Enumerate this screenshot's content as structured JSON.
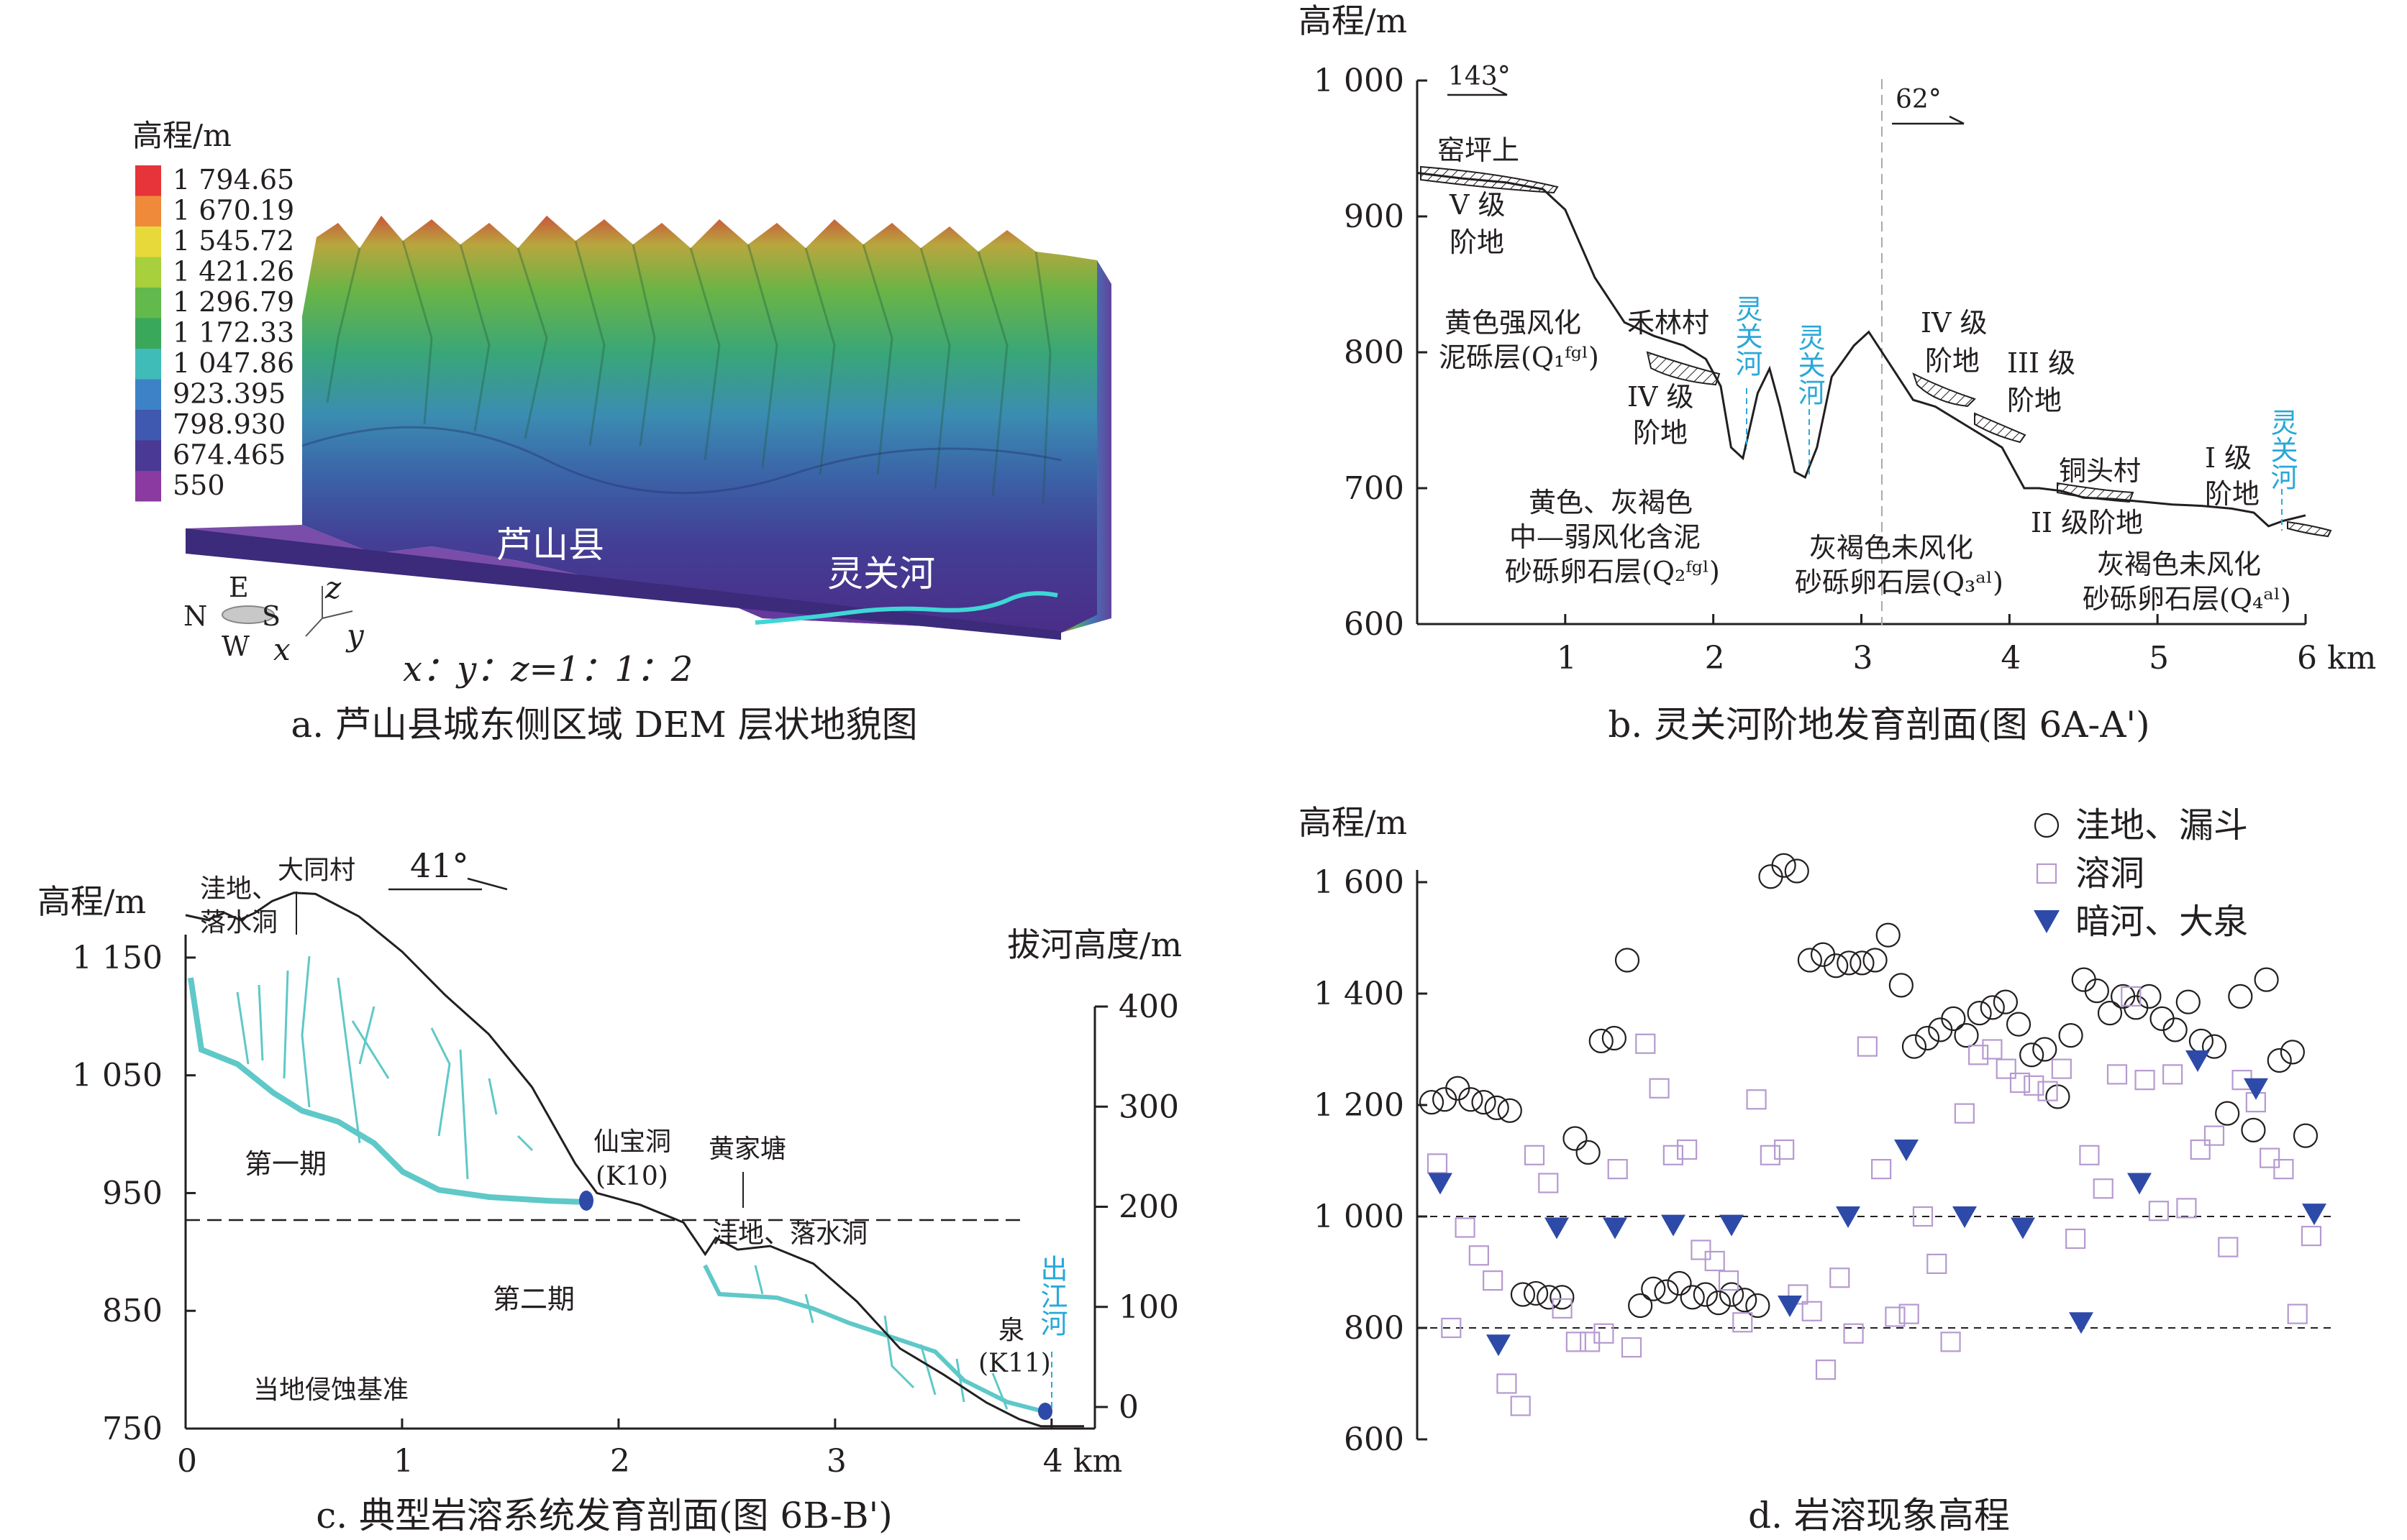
{
  "panel_a": {
    "caption": "a. 芦山县城东侧区域 DEM 层状地貌图",
    "legend_title": "高程/m",
    "legend_values": [
      "1 794.65",
      "1 670.19",
      "1 545.72",
      "1 421.26",
      "1 296.79",
      "1 172.33",
      "1 047.86",
      "923.395",
      "798.930",
      "674.465",
      "550"
    ],
    "legend_colors": [
      "#e6343a",
      "#ee8a3a",
      "#e8d93a",
      "#a8cf3c",
      "#62b94c",
      "#3aa85a",
      "#3fbcb8",
      "#3d82c6",
      "#3f58b0",
      "#4a3a95",
      "#8a3aa0"
    ],
    "town_label": "芦山县",
    "river_label": "灵关河",
    "compass": {
      "N": "N",
      "E": "E",
      "S": "S",
      "W": "W"
    },
    "axes": {
      "x": "x",
      "y": "y",
      "z": "z"
    },
    "scale_text": "x：y：z=1：1：2"
  },
  "panel_b": {
    "caption": "b. 灵关河阶地发育剖面(图 6A-A')",
    "ylabel": "高程/m",
    "yticks": [
      "1 000",
      "900",
      "800",
      "700",
      "600"
    ],
    "xticks": [
      "1",
      "2",
      "3",
      "4",
      "5",
      "6 km"
    ],
    "dir1": "143°",
    "dir2": "62°",
    "labels": {
      "yaopingshang": "窑坪上",
      "t5a": "V 级",
      "t5b": "阶地",
      "yellow1a": "黄色强风化",
      "yellow1b": "泥砾层(Q₁ᶠᵍˡ)",
      "helincun": "禾林村",
      "t4la": "IV 级",
      "t4lb": "阶地",
      "river1": "灵关河",
      "river2": "灵关河",
      "t4ra": "IV 级",
      "t4rb": "阶地",
      "t3a": "III 级",
      "t3b": "阶地",
      "tongtoucun": "铜头村",
      "t2": "II 级阶地",
      "t1a": "I 级",
      "t1b": "阶地",
      "river3": "灵关河",
      "q2a": "黄色、灰褐色",
      "q2b": "中—弱风化含泥",
      "q2c": "砂砾卵石层(Q₂ᶠᵍˡ)",
      "q3a": "灰褐色未风化",
      "q3b": "砂砾卵石层(Q₃ᵃˡ)",
      "q4a": "灰褐色未风化",
      "q4b": "砂砾卵石层(Q₄ᵃˡ)"
    }
  },
  "panel_c": {
    "caption": "c. 典型岩溶系统发育剖面(图 6B-B')",
    "ylabel_left": "高程/m",
    "ylabel_right": "拔河高度/m",
    "yticks_left": [
      "1 150",
      "1 050",
      "950",
      "850",
      "750"
    ],
    "yticks_right": [
      "400",
      "300",
      "200",
      "100",
      "0"
    ],
    "xticks": [
      "0",
      "1",
      "2",
      "3",
      "4 km"
    ],
    "direction": "41°",
    "labels": {
      "wadi_a": "洼地、",
      "wadi_b": "落水洞",
      "datongcun": "大同村",
      "phase1": "第一期",
      "phase2": "第二期",
      "xianbaodong_a": "仙宝洞",
      "xianbaodong_b": "(K10)",
      "huangjiatang": "黄家塘",
      "wadi2": "洼地、落水洞",
      "quan_a": "泉",
      "quan_b": "(K11)",
      "chujianghe": "出江河",
      "base_level": "当地侵蚀基准"
    }
  },
  "panel_d": {
    "caption": "d. 岩溶现象高程",
    "ylabel": "高程/m",
    "yticks": [
      "1 600",
      "1 400",
      "1 200",
      "1 000",
      "800",
      "600"
    ]
  },
  "chart_data": [
    {
      "type": "line",
      "panel": "b",
      "title": "灵关河阶地发育剖面(图 6A-A')",
      "xlabel": "km",
      "ylabel": "高程/m",
      "xlim": [
        0,
        6
      ],
      "ylim": [
        600,
        1000
      ],
      "series": [
        {
          "x": [
            0,
            0.3,
            0.6,
            0.85,
            1.0,
            1.2,
            1.4,
            1.6,
            1.8,
            1.95,
            2.05,
            2.12,
            2.2,
            2.3,
            2.38,
            2.45,
            2.55,
            2.62,
            2.7,
            2.8,
            2.95,
            3.05,
            3.2,
            3.35,
            3.5,
            3.65,
            3.8,
            3.95,
            4.1,
            4.2,
            4.35,
            4.5,
            4.7,
            4.9,
            5.1,
            5.3,
            5.5,
            5.65,
            5.75,
            5.85,
            6.0
          ],
          "y": [
            932,
            928,
            925,
            920,
            905,
            855,
            822,
            812,
            805,
            795,
            775,
            730,
            722,
            770,
            788,
            760,
            712,
            708,
            730,
            782,
            805,
            815,
            790,
            765,
            760,
            750,
            740,
            730,
            700,
            700,
            698,
            693,
            692,
            690,
            688,
            687,
            685,
            682,
            672,
            676,
            680
          ]
        }
      ]
    },
    {
      "type": "line",
      "panel": "c",
      "title": "典型岩溶系统发育剖面(图 6B-B')",
      "xlabel": "km",
      "ylabel": "高程/m",
      "y2label": "拔河高度/m",
      "xlim": [
        0,
        4.2
      ],
      "ylim": [
        750,
        1200
      ],
      "y2lim": [
        0,
        400
      ],
      "reference_lines": [
        950
      ],
      "series": [
        {
          "x": [
            0,
            0.1,
            0.18,
            0.25,
            0.32,
            0.4,
            0.5,
            0.6,
            0.8,
            1.0,
            1.2,
            1.4,
            1.6,
            1.8,
            1.9,
            2.1,
            2.3,
            2.4,
            2.45,
            2.55,
            2.7,
            2.9,
            3.1,
            3.3,
            3.5,
            3.7,
            3.85,
            3.95,
            4.05,
            4.15
          ],
          "y": [
            1186,
            1182,
            1188,
            1182,
            1188,
            1198,
            1205,
            1204,
            1185,
            1155,
            1118,
            1085,
            1040,
            975,
            950,
            940,
            925,
            898,
            912,
            902,
            905,
            890,
            858,
            818,
            796,
            772,
            758,
            752,
            752,
            752
          ]
        }
      ]
    },
    {
      "type": "scatter",
      "panel": "d",
      "title": "岩溶现象高程",
      "ylabel": "高程/m",
      "ylim": [
        600,
        1600
      ],
      "reference_lines": [
        1000,
        800
      ],
      "series": [
        {
          "name": "洼地、漏斗",
          "marker": "circle",
          "y": [
            1205,
            1210,
            1230,
            1210,
            1205,
            1195,
            1190,
            860,
            862,
            855,
            855,
            1140,
            1115,
            1315,
            1320,
            1460,
            840,
            870,
            865,
            880,
            855,
            860,
            845,
            860,
            850,
            840,
            1610,
            1630,
            1620,
            1460,
            1470,
            1450,
            1455,
            1455,
            1460,
            1505,
            1415,
            1305,
            1320,
            1335,
            1355,
            1325,
            1365,
            1375,
            1385,
            1345,
            1290,
            1300,
            1215,
            1325,
            1425,
            1405,
            1365,
            1395,
            1375,
            1395,
            1355,
            1335,
            1385,
            1315,
            1305,
            1185,
            1395,
            1155,
            1425,
            1280,
            1295,
            1145
          ]
        },
        {
          "name": "溶洞",
          "marker": "square",
          "y": [
            1095,
            800,
            980,
            930,
            885,
            700,
            660,
            1110,
            1060,
            835,
            775,
            775,
            790,
            1085,
            765,
            1310,
            1230,
            1110,
            1120,
            940,
            920,
            885,
            810,
            1210,
            1110,
            1120,
            860,
            830,
            725,
            890,
            790,
            1305,
            1085,
            820,
            825,
            1000,
            915,
            775,
            1185,
            1290,
            1300,
            1265,
            1240,
            1235,
            1225,
            1265,
            960,
            1110,
            1050,
            1255,
            1395,
            1245,
            1010,
            1255,
            1015,
            1120,
            1145,
            945,
            1245,
            1205,
            1105,
            1085,
            825,
            965
          ]
        },
        {
          "name": "暗河、大泉",
          "marker": "triangle-down",
          "y": [
            1060,
            770,
            980,
            980,
            985,
            985,
            840,
            1000,
            1120,
            1000,
            980,
            810,
            1060,
            1280,
            1230,
            1005
          ]
        }
      ]
    }
  ]
}
